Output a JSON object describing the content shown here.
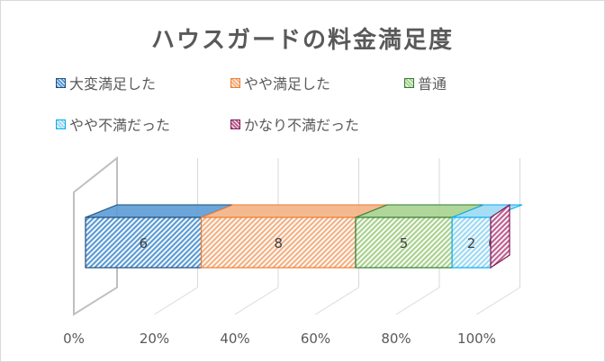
{
  "chart_data": {
    "type": "bar",
    "orientation": "horizontal",
    "stacked": "100%",
    "style": "3d",
    "title": "ハウスガードの料金満足度",
    "categories": [
      ""
    ],
    "series": [
      {
        "name": "大変満足した",
        "values": [
          6
        ],
        "color": "#5b9bd5",
        "stroke": "#1f4e79"
      },
      {
        "name": "やや満足した",
        "values": [
          8
        ],
        "color": "#f4b183",
        "stroke": "#ed7d31"
      },
      {
        "name": "普通",
        "values": [
          5
        ],
        "color": "#a9d18e",
        "stroke": "#2e7d32"
      },
      {
        "name": "やや不満だった",
        "values": [
          2
        ],
        "color": "#9dd9f3",
        "stroke": "#00b0f0"
      },
      {
        "name": "かなり不満だった",
        "values": [
          0
        ],
        "color": "#c06090",
        "stroke": "#7b1f5e"
      }
    ],
    "xlim": [
      0,
      100
    ],
    "xticks": [
      "0%",
      "20%",
      "40%",
      "60%",
      "80%",
      "100%"
    ],
    "grid": true,
    "legend_position": "top"
  }
}
